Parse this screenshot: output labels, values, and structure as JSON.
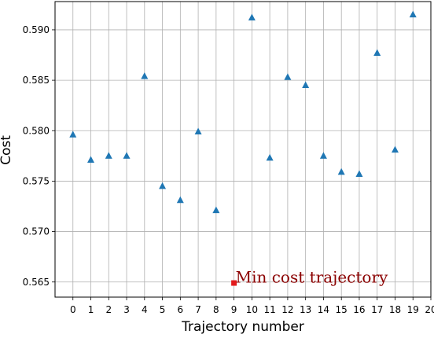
{
  "chart_data": {
    "type": "scatter",
    "title": "",
    "xlabel": "Trajectory number",
    "ylabel": "Cost",
    "xlim": [
      -1,
      20
    ],
    "ylim": [
      0.5635,
      0.5928
    ],
    "x_ticks": [
      0,
      1,
      2,
      3,
      4,
      5,
      6,
      7,
      8,
      9,
      10,
      11,
      12,
      13,
      14,
      15,
      16,
      17,
      18,
      19,
      20
    ],
    "y_ticks": [
      0.565,
      0.57,
      0.575,
      0.58,
      0.585,
      0.59
    ],
    "y_tick_labels": [
      "0.565",
      "0.570",
      "0.575",
      "0.580",
      "0.585",
      "0.590"
    ],
    "grid": true,
    "series": [
      {
        "marker": "triangle",
        "color": "#1f77b4",
        "x": [
          0,
          1,
          2,
          3,
          4,
          5,
          6,
          7,
          8,
          10,
          11,
          12,
          13,
          14,
          15,
          16,
          17,
          18,
          19
        ],
        "y": [
          0.5796,
          0.5771,
          0.5775,
          0.5775,
          0.5854,
          0.5745,
          0.5731,
          0.5799,
          0.5721,
          0.5912,
          0.5773,
          0.5853,
          0.5845,
          0.5775,
          0.5759,
          0.5757,
          0.5877,
          0.5781,
          0.5915
        ]
      }
    ],
    "highlight": {
      "x": 9,
      "y": 0.5649,
      "color": "#e31a1c",
      "marker": "square",
      "label": "Min cost trajectory",
      "label_color": "#8b0000"
    }
  }
}
